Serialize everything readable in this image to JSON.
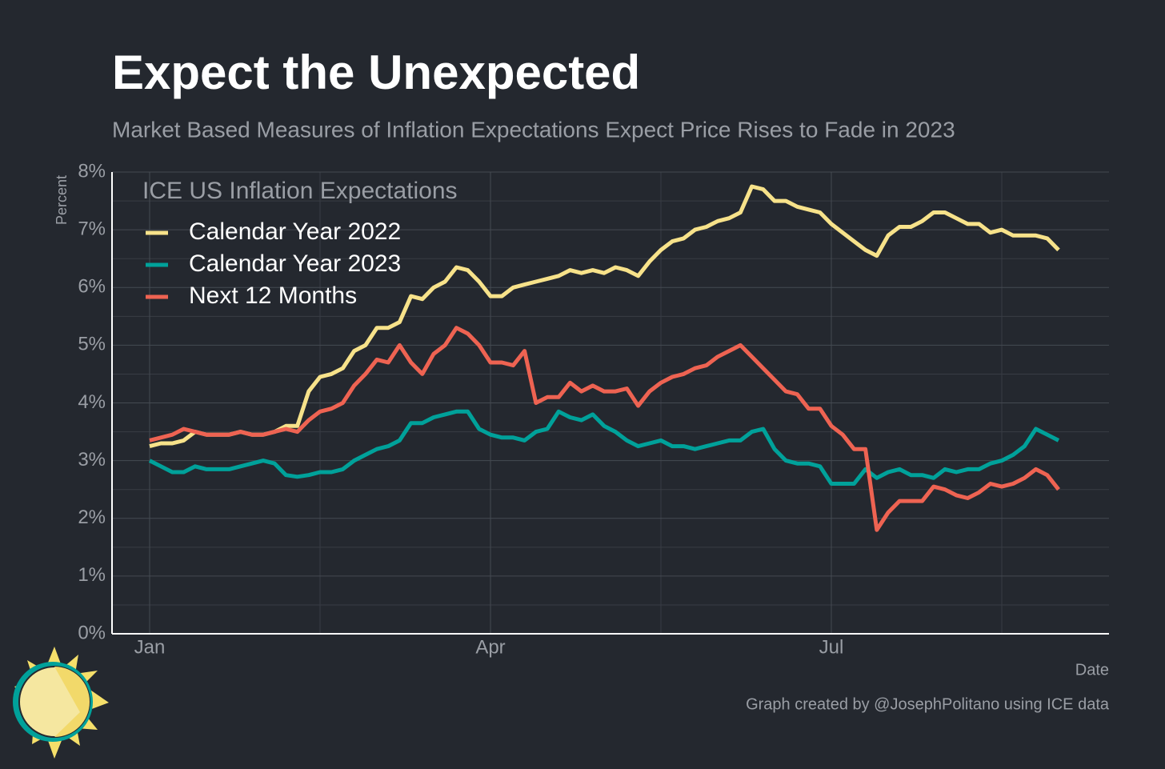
{
  "chart_data": {
    "type": "line",
    "title": "Expect the Unexpected",
    "subtitle": "Market Based Measures of Inflation Expectations Expect Price Rises to Fade in 2023",
    "ylabel": "Percent",
    "xlabel": "Date",
    "legend_title": "ICE US Inflation Expectations",
    "legend": "top-left",
    "grid": true,
    "caption": "Graph created by @JosephPolitano using ICE data",
    "categories": [
      "Jan",
      null,
      null,
      null,
      null,
      null,
      null,
      null,
      null,
      null,
      null,
      null,
      null,
      null,
      null,
      null,
      null,
      null,
      null,
      null,
      null,
      null,
      null,
      null,
      null,
      null,
      null,
      null,
      null,
      null,
      "Apr",
      null,
      null,
      null,
      null,
      null,
      null,
      null,
      null,
      null,
      null,
      null,
      null,
      null,
      null,
      null,
      null,
      null,
      null,
      null,
      null,
      null,
      null,
      null,
      null,
      null,
      null,
      null,
      null,
      null,
      "Jul",
      null,
      null,
      null,
      null,
      null,
      null,
      null,
      null,
      null,
      null,
      null,
      null,
      null,
      null,
      null,
      null,
      null,
      null,
      null,
      null
    ],
    "ylim": [
      0,
      8
    ],
    "yticks": [
      {
        "value": 0,
        "label": "0%"
      },
      {
        "value": 1,
        "label": "1%"
      },
      {
        "value": 2,
        "label": "2%"
      },
      {
        "value": 3,
        "label": "3%"
      },
      {
        "value": 4,
        "label": "4%"
      },
      {
        "value": 5,
        "label": "5%"
      },
      {
        "value": 6,
        "label": "6%"
      },
      {
        "value": 7,
        "label": "7%"
      },
      {
        "value": 8,
        "label": "8%"
      }
    ],
    "series": [
      {
        "name": "Calendar Year 2022",
        "color": "#f7e28a",
        "values": [
          3.25,
          3.3,
          3.3,
          3.35,
          3.5,
          3.45,
          3.45,
          3.45,
          3.5,
          3.45,
          3.45,
          3.5,
          3.6,
          3.6,
          4.2,
          4.45,
          4.5,
          4.6,
          4.9,
          5.0,
          5.3,
          5.3,
          5.4,
          5.85,
          5.8,
          6.0,
          6.1,
          6.35,
          6.3,
          6.1,
          5.85,
          5.85,
          6.0,
          6.05,
          6.1,
          6.15,
          6.2,
          6.3,
          6.25,
          6.3,
          6.25,
          6.35,
          6.3,
          6.2,
          6.45,
          6.65,
          6.8,
          6.85,
          7.0,
          7.05,
          7.15,
          7.2,
          7.3,
          7.75,
          7.7,
          7.5,
          7.5,
          7.4,
          7.35,
          7.3,
          7.1,
          6.95,
          6.8,
          6.65,
          6.55,
          6.9,
          7.05,
          7.05,
          7.15,
          7.3,
          7.3,
          7.2,
          7.1,
          7.1,
          6.95,
          7.0,
          6.9,
          6.9,
          6.9,
          6.85,
          6.65
        ]
      },
      {
        "name": "Calendar Year 2023",
        "color": "#00a19a",
        "values": [
          3.0,
          2.9,
          2.8,
          2.8,
          2.9,
          2.85,
          2.85,
          2.85,
          2.9,
          2.95,
          3.0,
          2.95,
          2.75,
          2.72,
          2.75,
          2.8,
          2.8,
          2.85,
          3.0,
          3.1,
          3.2,
          3.25,
          3.35,
          3.65,
          3.65,
          3.75,
          3.8,
          3.85,
          3.85,
          3.55,
          3.45,
          3.4,
          3.4,
          3.35,
          3.5,
          3.55,
          3.85,
          3.75,
          3.7,
          3.8,
          3.6,
          3.5,
          3.35,
          3.25,
          3.3,
          3.35,
          3.25,
          3.25,
          3.2,
          3.25,
          3.3,
          3.35,
          3.35,
          3.5,
          3.55,
          3.2,
          3.0,
          2.95,
          2.95,
          2.9,
          2.6,
          2.6,
          2.6,
          2.85,
          2.7,
          2.8,
          2.85,
          2.75,
          2.75,
          2.7,
          2.85,
          2.8,
          2.85,
          2.85,
          2.95,
          3.0,
          3.1,
          3.25,
          3.55,
          3.45,
          3.35
        ]
      },
      {
        "name": "Next 12 Months",
        "color": "#ee6352",
        "values": [
          3.35,
          3.4,
          3.45,
          3.55,
          3.5,
          3.45,
          3.45,
          3.45,
          3.5,
          3.45,
          3.45,
          3.5,
          3.55,
          3.5,
          3.7,
          3.85,
          3.9,
          4.0,
          4.3,
          4.5,
          4.75,
          4.7,
          5.0,
          4.7,
          4.5,
          4.85,
          5.0,
          5.3,
          5.2,
          5.0,
          4.7,
          4.7,
          4.65,
          4.9,
          4.0,
          4.1,
          4.1,
          4.35,
          4.2,
          4.3,
          4.2,
          4.2,
          4.25,
          3.95,
          4.2,
          4.35,
          4.45,
          4.5,
          4.6,
          4.65,
          4.8,
          4.9,
          5.0,
          4.8,
          4.6,
          4.4,
          4.2,
          4.15,
          3.9,
          3.9,
          3.6,
          3.45,
          3.2,
          3.2,
          1.8,
          2.1,
          2.3,
          2.3,
          2.3,
          2.55,
          2.5,
          2.4,
          2.35,
          2.45,
          2.6,
          2.55,
          2.6,
          2.7,
          2.85,
          2.75,
          2.5
        ]
      }
    ]
  }
}
